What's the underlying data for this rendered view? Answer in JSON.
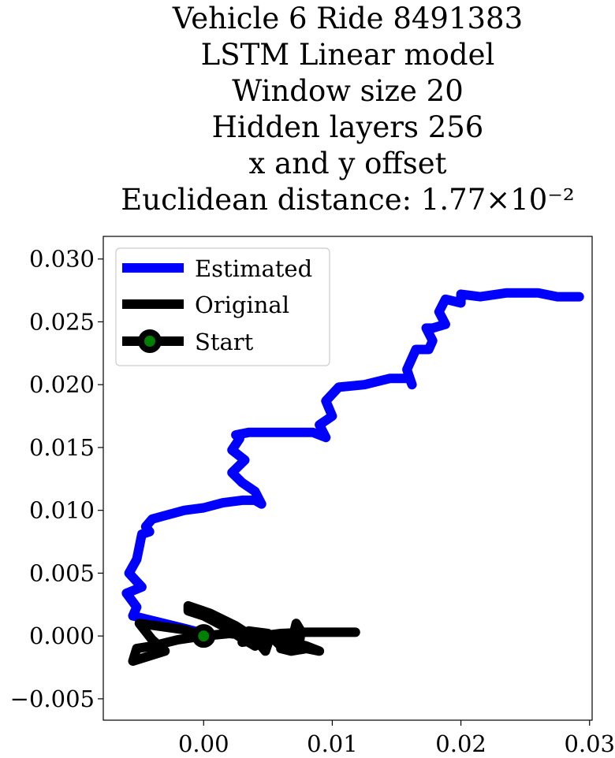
{
  "chart_data": {
    "type": "line",
    "title_lines": [
      "Vehicle 6 Ride 8491383",
      "LSTM Linear model",
      "Window size 20",
      "Hidden layers 256",
      "x and y offset",
      "Euclidean distance: 1.77×10⁻²"
    ],
    "xlabel": "",
    "ylabel": "",
    "xlim": [
      -0.0078,
      0.0302
    ],
    "ylim": [
      -0.0067,
      0.0318
    ],
    "x_ticks": [
      0.0,
      0.01,
      0.02,
      0.03
    ],
    "x_tick_labels": [
      "0.00",
      "0.01",
      "0.02",
      "0.03"
    ],
    "y_ticks": [
      -0.005,
      0.0,
      0.005,
      0.01,
      0.015,
      0.02,
      0.025,
      0.03
    ],
    "y_tick_labels": [
      "−0.005",
      "0.000",
      "0.005",
      "0.010",
      "0.015",
      "0.020",
      "0.025",
      "0.030"
    ],
    "grid": false,
    "legend_position": "top-left",
    "series": [
      {
        "name": "Estimated",
        "color": "#0000ff",
        "x": [
          0.0,
          -0.0015,
          -0.0035,
          -0.0055,
          -0.0052,
          -0.006,
          -0.0048,
          -0.0058,
          -0.0052,
          -0.005,
          -0.0048,
          -0.0042,
          -0.0045,
          -0.004,
          -0.0033,
          -0.0015,
          0.0,
          0.0015,
          0.003,
          0.004,
          0.0045,
          0.004,
          0.003,
          0.0022,
          0.0032,
          0.0022,
          0.0028,
          0.0025,
          0.0035,
          0.006,
          0.0085,
          0.0095,
          0.009,
          0.01,
          0.0095,
          0.0105,
          0.0125,
          0.0145,
          0.016,
          0.0162,
          0.0158,
          0.0165,
          0.0175,
          0.0178,
          0.0173,
          0.0178,
          0.0188,
          0.0183,
          0.0188,
          0.02,
          0.02,
          0.0215,
          0.0235,
          0.026,
          0.0275,
          0.0292
        ],
        "y": [
          0.0002,
          0.0006,
          0.0011,
          0.0016,
          0.0023,
          0.0034,
          0.0039,
          0.005,
          0.0061,
          0.0071,
          0.0081,
          0.0083,
          0.0087,
          0.0093,
          0.0095,
          0.01,
          0.0102,
          0.0106,
          0.0108,
          0.0108,
          0.0105,
          0.0115,
          0.0122,
          0.013,
          0.014,
          0.0148,
          0.0157,
          0.016,
          0.0162,
          0.0162,
          0.0162,
          0.0158,
          0.0168,
          0.0175,
          0.0187,
          0.0198,
          0.02,
          0.0205,
          0.0205,
          0.02,
          0.0212,
          0.0228,
          0.0228,
          0.0235,
          0.0245,
          0.0245,
          0.0248,
          0.0258,
          0.0268,
          0.0265,
          0.0272,
          0.027,
          0.0273,
          0.0273,
          0.027,
          0.027
        ]
      },
      {
        "name": "Original",
        "color": "#000000",
        "x": [
          0.0,
          -0.0015,
          -0.005,
          -0.004,
          -0.003,
          -0.0055,
          -0.0052,
          -0.004,
          -0.002,
          0.0,
          0.002,
          0.003,
          0.0035,
          0.004,
          0.003,
          0.0015,
          0.0,
          -0.0012,
          -0.0012,
          0.0005,
          0.0025,
          0.004,
          0.0048,
          0.005,
          0.004,
          0.0035,
          0.005,
          0.006,
          0.0068,
          0.007,
          0.0075,
          0.0075,
          0.0072,
          0.007,
          0.0065,
          0.006,
          0.0068,
          0.008,
          0.009,
          0.008,
          0.0065,
          0.005,
          0.003,
          0.0045,
          0.006,
          0.008,
          0.01,
          0.0118
        ],
        "y": [
          0.0,
          0.0005,
          0.001,
          -0.0003,
          -0.0012,
          -0.002,
          -0.001,
          -0.0008,
          -0.0003,
          0.0,
          0.0002,
          0.0001,
          -0.0005,
          -0.0008,
          -0.0002,
          0.0008,
          0.0016,
          0.002,
          0.0024,
          0.0018,
          0.0008,
          -0.0002,
          -0.0012,
          -0.0006,
          0.0002,
          0.0004,
          0.0002,
          -0.0008,
          -0.0012,
          -0.0007,
          -0.0002,
          0.0005,
          0.001,
          0.0002,
          -0.0005,
          -0.001,
          -0.0012,
          -0.001,
          -0.0012,
          -0.0008,
          -0.0004,
          -0.0002,
          -0.0005,
          0.0,
          0.0002,
          0.0003,
          0.0003,
          0.0003
        ]
      }
    ],
    "start_point": {
      "name": "Start",
      "x": 0.0,
      "y": 0.0,
      "fill": "#008000",
      "edge": "#000000"
    }
  }
}
